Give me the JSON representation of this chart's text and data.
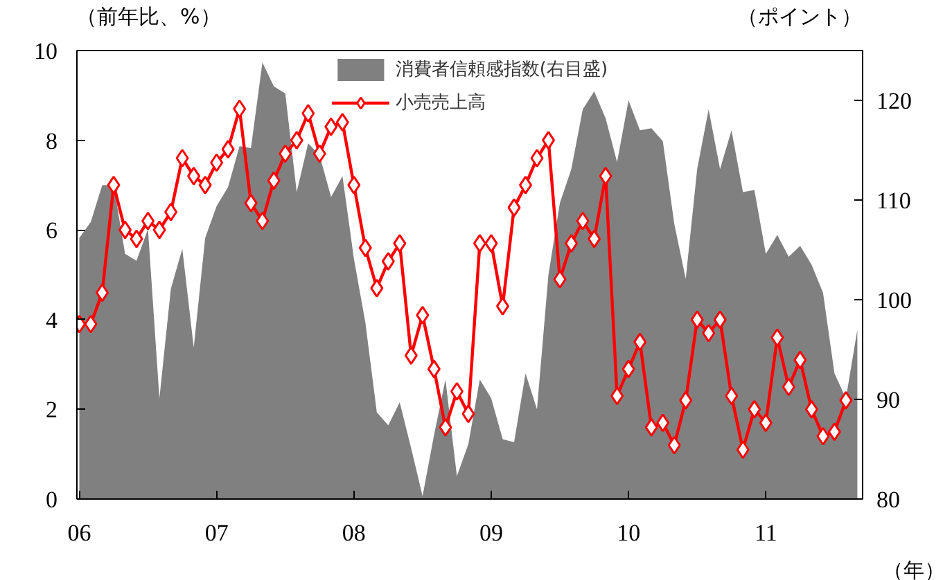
{
  "chart_data": {
    "type": "line",
    "xlabel": "（年）",
    "ylabel": "（前年比、%）",
    "y2label": "（ポイント）",
    "x": [
      "2006-01",
      "2006-02",
      "2006-03",
      "2006-04",
      "2006-05",
      "2006-06",
      "2006-07",
      "2006-08",
      "2006-09",
      "2006-10",
      "2006-11",
      "2006-12",
      "2007-01",
      "2007-02",
      "2007-03",
      "2007-04",
      "2007-05",
      "2007-06",
      "2007-07",
      "2007-08",
      "2007-09",
      "2007-10",
      "2007-11",
      "2007-12",
      "2008-01",
      "2008-02",
      "2008-03",
      "2008-04",
      "2008-05",
      "2008-06",
      "2008-07",
      "2008-08",
      "2008-09",
      "2008-10",
      "2008-11",
      "2008-12",
      "2009-01",
      "2009-02",
      "2009-03",
      "2009-04",
      "2009-05",
      "2009-06",
      "2009-07",
      "2009-08",
      "2009-09",
      "2009-10",
      "2009-11",
      "2009-12",
      "2010-01",
      "2010-02",
      "2010-03",
      "2010-04",
      "2010-05",
      "2010-06",
      "2010-07",
      "2010-08",
      "2010-09",
      "2010-10",
      "2010-11",
      "2010-12",
      "2011-01",
      "2011-02",
      "2011-03",
      "2011-04",
      "2011-05",
      "2011-06",
      "2011-07",
      "2011-08",
      "2011-09"
    ],
    "series": [
      {
        "name": "消費者信頼感指数(右目盛)",
        "type": "area",
        "axis": "y2",
        "color": "#808080",
        "values": [
          106.2,
          107.8,
          111.5,
          111.5,
          104.6,
          103.9,
          107.1,
          90.1,
          101.1,
          105.1,
          95.2,
          106.2,
          109.4,
          111.3,
          115.4,
          115.2,
          123.8,
          121.4,
          120.7,
          110.8,
          115.7,
          114.5,
          110.3,
          112.4,
          104.1,
          97.7,
          88.7,
          87.4,
          89.7,
          85.1,
          80.3,
          86.4,
          92.0,
          82.3,
          85.5,
          92.0,
          90.1,
          86.0,
          85.7,
          92.6,
          89.0,
          102.5,
          109.7,
          113.1,
          119.1,
          120.9,
          118.2,
          113.8,
          120.0,
          117.0,
          117.2,
          115.9,
          107.6,
          102.1,
          113.1,
          119.1,
          113.1,
          117.0,
          110.8,
          111.0,
          104.6,
          106.5,
          104.3,
          105.4,
          103.5,
          100.7,
          92.6,
          90.1,
          97.0
        ]
      },
      {
        "name": "小売売上高",
        "color": "#ff0000",
        "marker": "diamond",
        "values": [
          3.9,
          3.9,
          4.6,
          7.0,
          6.0,
          5.8,
          6.2,
          6.0,
          6.4,
          7.6,
          7.2,
          7.0,
          7.5,
          7.8,
          8.7,
          6.6,
          6.2,
          7.1,
          7.7,
          8.0,
          8.6,
          7.7,
          8.3,
          8.4,
          7.0,
          5.6,
          4.7,
          5.3,
          5.7,
          3.2,
          4.1,
          2.9,
          1.6,
          2.4,
          1.9,
          5.7,
          5.7,
          4.3,
          6.5,
          7.0,
          7.6,
          8.0,
          4.9,
          5.7,
          6.2,
          5.8,
          7.2,
          2.3,
          2.9,
          3.5,
          1.6,
          1.7,
          1.2,
          2.2,
          4.0,
          3.7,
          4.0,
          2.3,
          1.1,
          2.0,
          1.7,
          3.6,
          2.5,
          3.1,
          2.0,
          1.4,
          1.5,
          2.2,
          null
        ]
      }
    ],
    "xlim": [
      "2005-12-25",
      "2011-09-15"
    ],
    "xticks": [
      {
        "value": "2006",
        "label": "06"
      },
      {
        "value": "2007",
        "label": "07"
      },
      {
        "value": "2008",
        "label": "08"
      },
      {
        "value": "2009",
        "label": "09"
      },
      {
        "value": "2010",
        "label": "10"
      },
      {
        "value": "2011",
        "label": "11"
      }
    ],
    "ylim": [
      0,
      10
    ],
    "yticks": [
      0,
      2,
      4,
      6,
      8,
      10
    ],
    "y2lim": [
      80,
      125
    ],
    "y2ticks": [
      80,
      90,
      100,
      110,
      120
    ],
    "grid": false,
    "legend": "top"
  }
}
